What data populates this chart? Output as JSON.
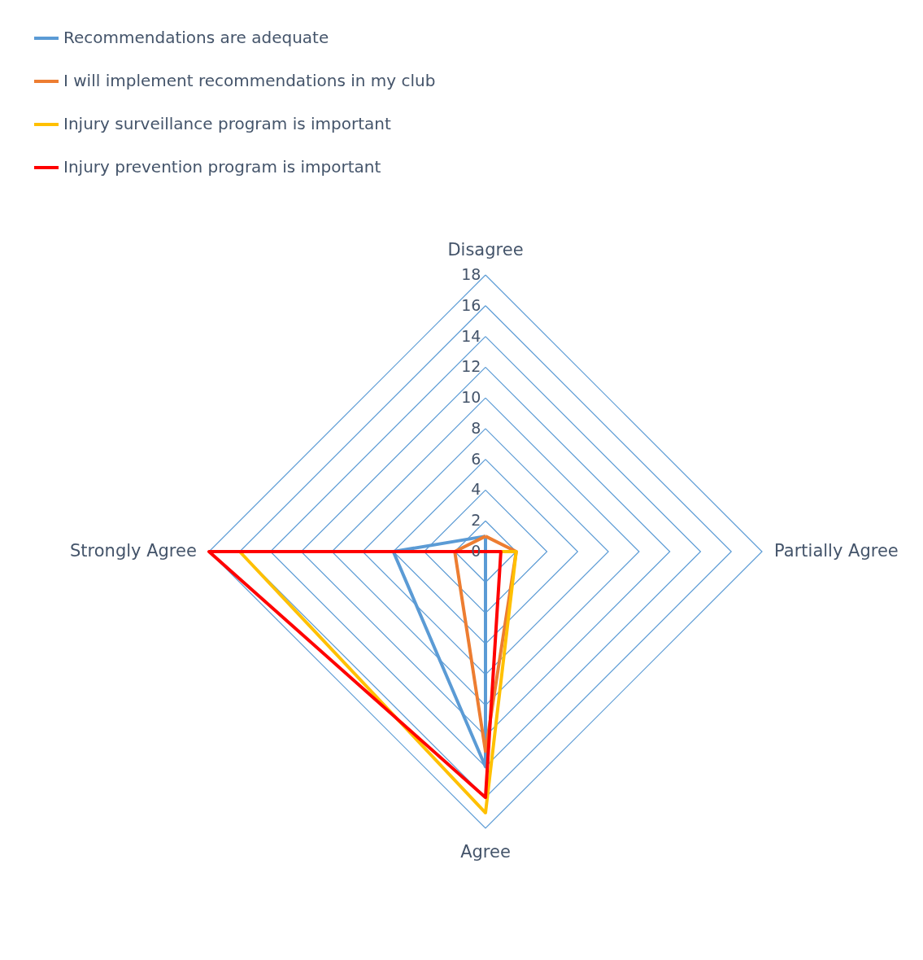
{
  "chart_data": {
    "type": "radar",
    "categories": [
      "Disagree",
      "Partially Agree",
      "Agree",
      "Strongly Agree"
    ],
    "series": [
      {
        "name": "Recommendations are adequate",
        "color": "#5b9bd5",
        "values": [
          1,
          0,
          14,
          6
        ]
      },
      {
        "name": "I will implement recommendations in my club",
        "color": "#ed7d31",
        "values": [
          1,
          2,
          13,
          2
        ]
      },
      {
        "name": "Injury surveillance program is important",
        "color": "#ffc000",
        "values": [
          0,
          2,
          17,
          16
        ]
      },
      {
        "name": "Injury prevention program is important",
        "color": "#ff0000",
        "values": [
          0,
          1,
          16,
          18
        ]
      }
    ],
    "ylim": [
      0,
      18
    ],
    "yticks": [
      0,
      2,
      4,
      6,
      8,
      10,
      12,
      14,
      16,
      18
    ],
    "grid": true,
    "legend": "top left"
  }
}
